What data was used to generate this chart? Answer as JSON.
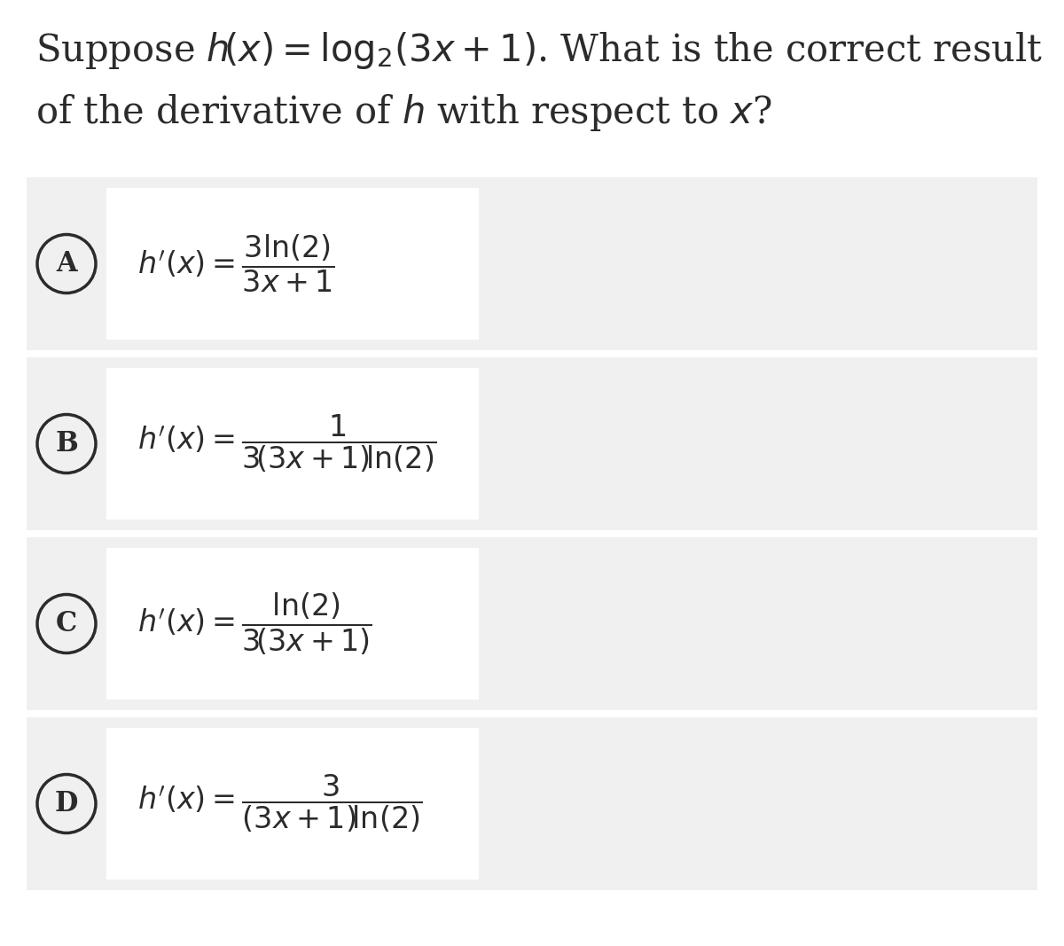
{
  "bg_color": "#ffffff",
  "outer_bg": "#f0f0f0",
  "inner_bg": "#ffffff",
  "text_color": "#2b2b2b",
  "figsize": [
    12.0,
    10.67
  ],
  "dpi": 100,
  "options": [
    {
      "label": "A"
    },
    {
      "label": "B"
    },
    {
      "label": "C"
    },
    {
      "label": "D"
    }
  ],
  "formulas": [
    "3ln(2) / (3x+1)",
    "1 / 3(3x+1)ln(2)",
    "ln(2) / 3(3x+1)",
    "3 / (3x+1)ln(2)"
  ]
}
